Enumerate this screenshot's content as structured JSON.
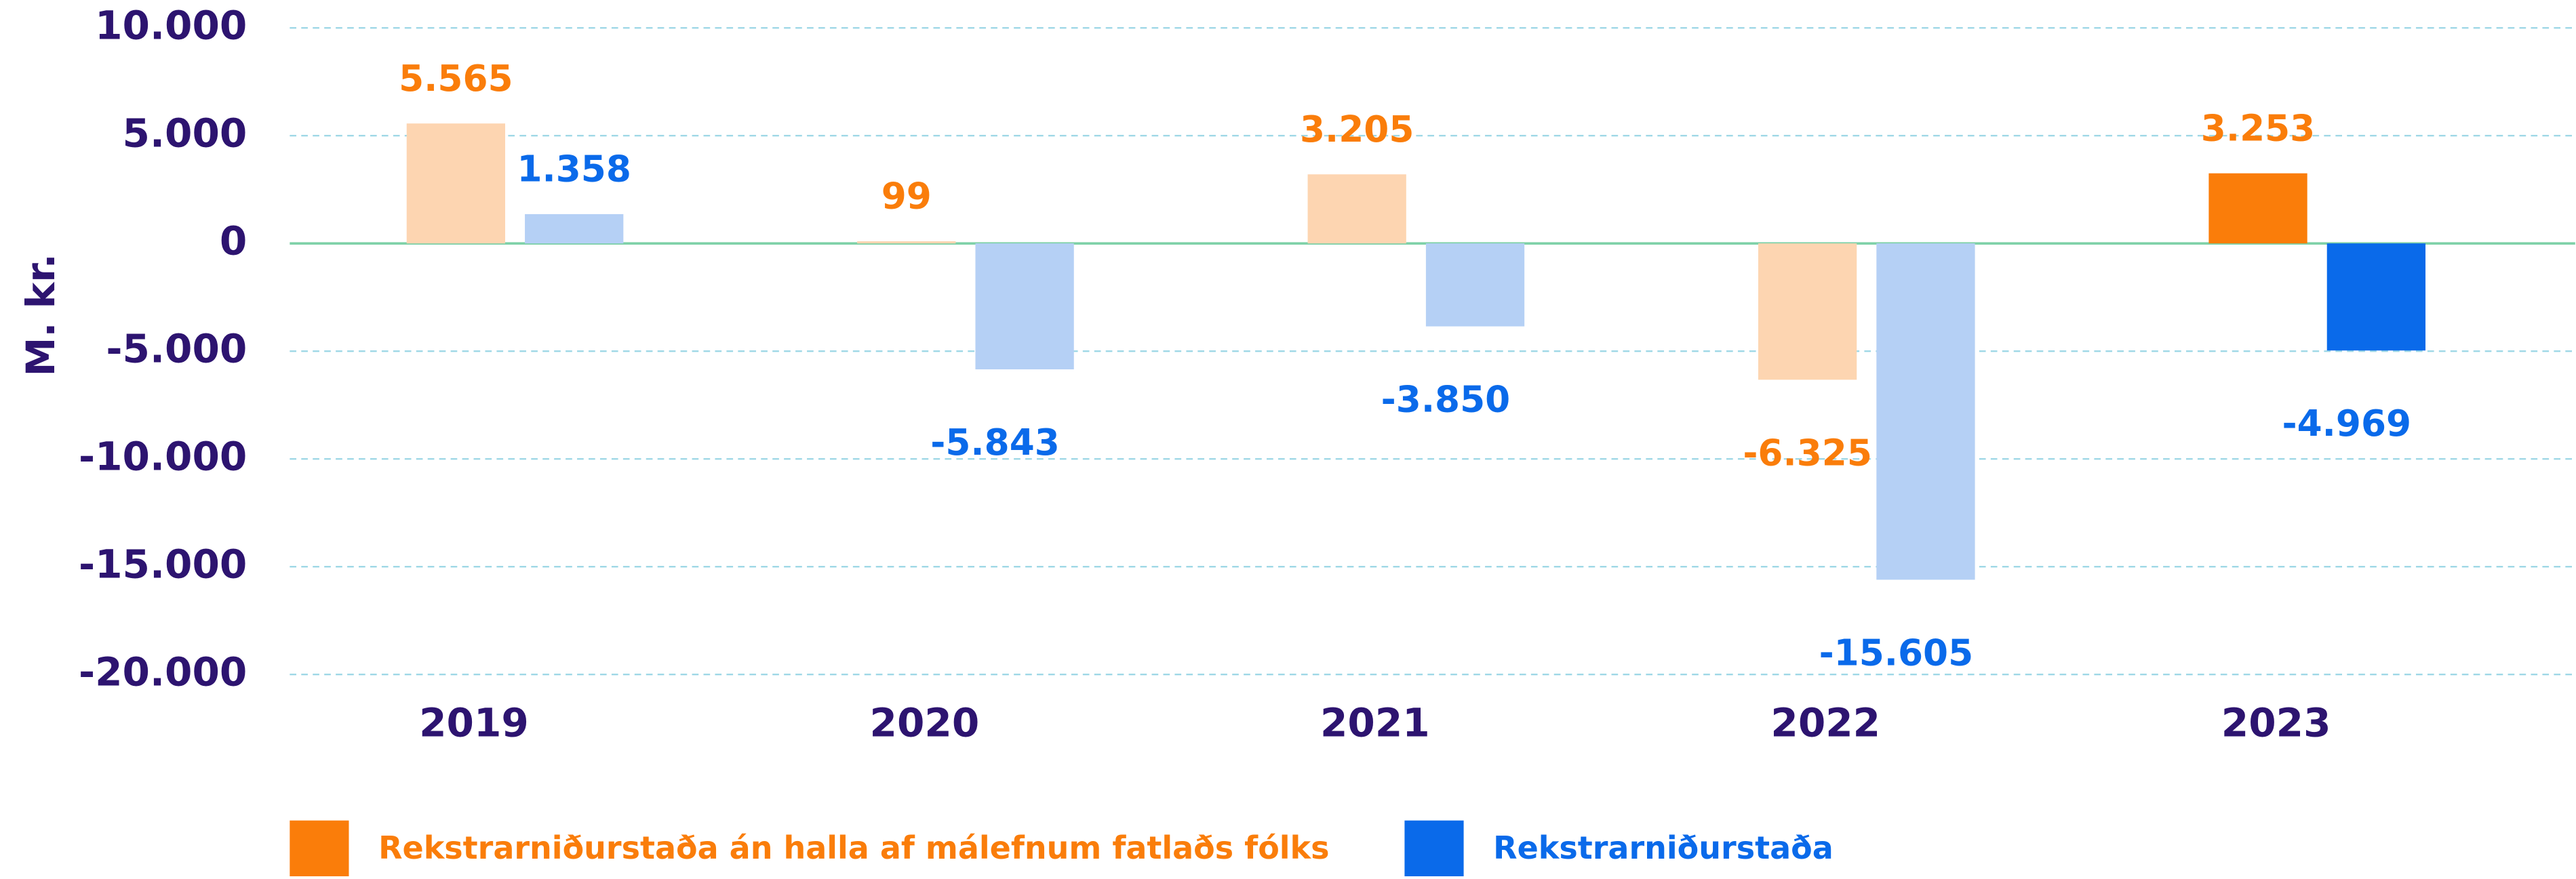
{
  "chart_data": {
    "type": "bar",
    "y_label": "M. kr.",
    "categories": [
      "2019",
      "2020",
      "2021",
      "2022",
      "2023"
    ],
    "series": [
      {
        "name": "Rekstrarniðurstaða án halla af málefnum fatlaðs fólks",
        "color": "#fa7d0a",
        "colors": [
          "#fdd5b1",
          "#fdd5b1",
          "#fdd5b1",
          "#fdd5b1",
          "#fa7d0a"
        ],
        "values": [
          5565,
          99,
          3205,
          -6325,
          3253
        ],
        "value_labels": [
          "5.565",
          "99",
          "3.205",
          "-6.325",
          "3.253"
        ]
      },
      {
        "name": "Rekstrarniðurstaða",
        "color": "#0a6aea",
        "colors": [
          "#b5d0f5",
          "#b5d0f5",
          "#b5d0f5",
          "#b5d0f5",
          "#0a6aea"
        ],
        "values": [
          1358,
          -5843,
          -3850,
          -15605,
          -4969
        ],
        "value_labels": [
          "1.358",
          "-5.843",
          "-3.850",
          "-15.605",
          "-4.969"
        ]
      }
    ],
    "ylim": [
      -20000,
      10000
    ],
    "yticks": [
      {
        "value": 10000,
        "label": "10.000"
      },
      {
        "value": 5000,
        "label": "5.000"
      },
      0,
      {
        "value": -5000,
        "label": "-5.000"
      },
      {
        "value": -10000,
        "label": "-10.000"
      },
      {
        "value": -15000,
        "label": "-15.000"
      },
      {
        "value": -20000,
        "label": "-20.000"
      }
    ],
    "grid": true,
    "legend": "bottom"
  }
}
